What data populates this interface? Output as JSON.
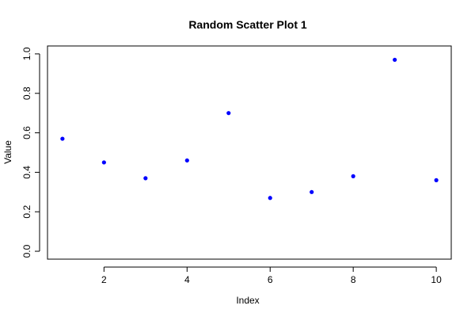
{
  "chart_data": {
    "type": "scatter",
    "title": "Random Scatter Plot 1",
    "xlabel": "Index",
    "ylabel": "Value",
    "xlim": [
      0.64,
      10.36
    ],
    "ylim": [
      -0.04,
      1.04
    ],
    "x_ticks": [
      2,
      4,
      6,
      8,
      10
    ],
    "x_tick_labels": [
      "2",
      "4",
      "6",
      "8",
      "10"
    ],
    "y_ticks": [
      0.0,
      0.2,
      0.4,
      0.6,
      0.8,
      1.0
    ],
    "y_tick_labels": [
      "0.0",
      "0.2",
      "0.4",
      "0.6",
      "0.8",
      "1.0"
    ],
    "grid": false,
    "point_color": "#0000ff",
    "series": [
      {
        "x": [
          1,
          2,
          3,
          4,
          5,
          6,
          7,
          8,
          9,
          10
        ],
        "y": [
          0.57,
          0.45,
          0.37,
          0.46,
          0.7,
          0.27,
          0.3,
          0.38,
          0.97,
          0.36
        ]
      }
    ]
  }
}
